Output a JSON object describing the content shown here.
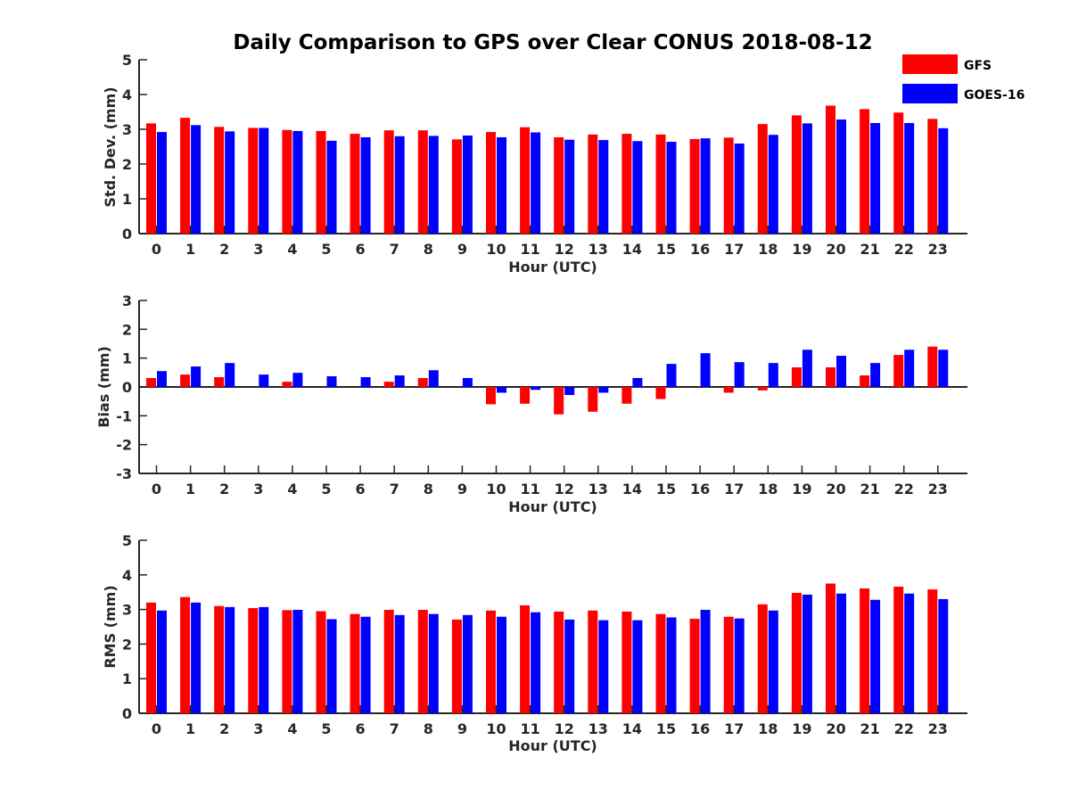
{
  "chart_data": {
    "title": "Daily Comparison to GPS over Clear CONUS 2018-08-12",
    "type": "bar",
    "legend": {
      "position": "top-right",
      "entries": [
        {
          "name": "GFS",
          "color": "#ff0000"
        },
        {
          "name": "GOES-16",
          "color": "#0000ff"
        }
      ]
    },
    "panels": [
      {
        "type": "bar",
        "xlabel": "Hour (UTC)",
        "ylabel": "Std. Dev. (mm)",
        "ylim": [
          0,
          5
        ],
        "yticks": [
          0,
          1,
          2,
          3,
          4,
          5
        ],
        "categories": [
          "0",
          "1",
          "2",
          "3",
          "4",
          "5",
          "6",
          "7",
          "8",
          "9",
          "10",
          "11",
          "12",
          "13",
          "14",
          "15",
          "16",
          "17",
          "18",
          "19",
          "20",
          "21",
          "22",
          "23"
        ],
        "series": [
          {
            "name": "GFS",
            "values": [
              3.17,
              3.33,
              3.07,
              3.04,
              2.98,
              2.95,
              2.87,
              2.97,
              2.97,
              2.71,
              2.92,
              3.06,
              2.77,
              2.85,
              2.87,
              2.85,
              2.72,
              2.76,
              3.15,
              3.4,
              3.68,
              3.58,
              3.48,
              3.3
            ]
          },
          {
            "name": "GOES-16",
            "values": [
              2.92,
              3.12,
              2.94,
              3.04,
              2.95,
              2.67,
              2.77,
              2.8,
              2.81,
              2.82,
              2.77,
              2.91,
              2.7,
              2.69,
              2.66,
              2.64,
              2.74,
              2.59,
              2.84,
              3.17,
              3.28,
              3.18,
              3.18,
              3.03
            ]
          }
        ]
      },
      {
        "type": "bar",
        "xlabel": "Hour (UTC)",
        "ylabel": "Bias (mm)",
        "ylim": [
          -3,
          3
        ],
        "yticks": [
          -3,
          -2,
          -1,
          0,
          1,
          2,
          3
        ],
        "categories": [
          "0",
          "1",
          "2",
          "3",
          "4",
          "5",
          "6",
          "7",
          "8",
          "9",
          "10",
          "11",
          "12",
          "13",
          "14",
          "15",
          "16",
          "17",
          "18",
          "19",
          "20",
          "21",
          "22",
          "23"
        ],
        "series": [
          {
            "name": "GFS",
            "values": [
              0.31,
              0.43,
              0.34,
              0.0,
              0.18,
              0.0,
              0.0,
              0.18,
              0.31,
              0.0,
              -0.6,
              -0.58,
              -0.95,
              -0.86,
              -0.58,
              -0.42,
              0.0,
              -0.2,
              -0.12,
              0.68,
              0.68,
              0.4,
              1.11,
              1.4
            ]
          },
          {
            "name": "GOES-16",
            "values": [
              0.55,
              0.71,
              0.83,
              0.43,
              0.49,
              0.37,
              0.34,
              0.4,
              0.58,
              0.31,
              -0.2,
              -0.1,
              -0.28,
              -0.2,
              0.31,
              0.8,
              1.17,
              0.86,
              0.83,
              1.29,
              1.08,
              0.83,
              1.29,
              1.29
            ]
          }
        ]
      },
      {
        "type": "bar",
        "xlabel": "Hour (UTC)",
        "ylabel": "RMS (mm)",
        "ylim": [
          0,
          5
        ],
        "yticks": [
          0,
          1,
          2,
          3,
          4,
          5
        ],
        "categories": [
          "0",
          "1",
          "2",
          "3",
          "4",
          "5",
          "6",
          "7",
          "8",
          "9",
          "10",
          "11",
          "12",
          "13",
          "14",
          "15",
          "16",
          "17",
          "18",
          "19",
          "20",
          "21",
          "22",
          "23"
        ],
        "series": [
          {
            "name": "GFS",
            "values": [
              3.2,
              3.36,
              3.1,
              3.04,
              2.98,
              2.95,
              2.87,
              2.99,
              2.99,
              2.71,
              2.97,
              3.12,
              2.94,
              2.97,
              2.94,
              2.87,
              2.73,
              2.79,
              3.15,
              3.48,
              3.75,
              3.61,
              3.66,
              3.58
            ]
          },
          {
            "name": "GOES-16",
            "values": [
              2.97,
              3.2,
              3.07,
              3.07,
              2.99,
              2.72,
              2.79,
              2.84,
              2.87,
              2.84,
              2.79,
              2.92,
              2.71,
              2.69,
              2.69,
              2.77,
              2.99,
              2.74,
              2.97,
              3.43,
              3.46,
              3.28,
              3.46,
              3.3
            ]
          }
        ]
      }
    ]
  }
}
